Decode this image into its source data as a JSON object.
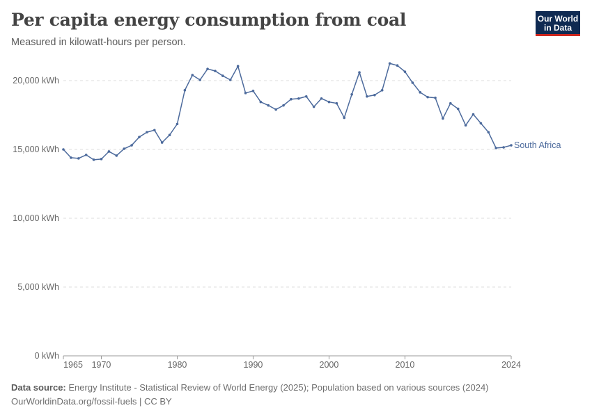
{
  "header": {
    "title": "Per capita energy consumption from coal",
    "subtitle": "Measured in kilowatt-hours per person.",
    "logo_line1": "Our World",
    "logo_line2": "in Data"
  },
  "footer": {
    "source_label": "Data source:",
    "source_text": "Energy Institute - Statistical Review of World Energy (2025); Population based on various sources (2024)",
    "link_text": "OurWorldinData.org/fossil-fuels | CC BY"
  },
  "colors": {
    "series": "#4c6a9c",
    "grid": "#dddddd",
    "axis": "#666666"
  },
  "chart_data": {
    "type": "line",
    "title": "Per capita energy consumption from coal",
    "subtitle": "Measured in kilowatt-hours per person.",
    "xlim": [
      1965,
      2024
    ],
    "ylim": [
      0,
      20000
    ],
    "x_ticks": [
      1965,
      1970,
      1980,
      1990,
      2000,
      2010,
      2024
    ],
    "y_ticks": [
      0,
      5000,
      10000,
      15000,
      20000
    ],
    "y_tick_labels": [
      "0 kWh",
      "5,000 kWh",
      "10,000 kWh",
      "15,000 kWh",
      "20,000 kWh"
    ],
    "grid": "horizontal dashed",
    "legend": "label at line end",
    "series": [
      {
        "name": "South Africa",
        "x": [
          1965,
          1966,
          1967,
          1968,
          1969,
          1970,
          1971,
          1972,
          1973,
          1974,
          1975,
          1976,
          1977,
          1978,
          1979,
          1980,
          1981,
          1982,
          1983,
          1984,
          1985,
          1986,
          1987,
          1988,
          1989,
          1990,
          1991,
          1992,
          1993,
          1994,
          1995,
          1996,
          1997,
          1998,
          1999,
          2000,
          2001,
          2002,
          2003,
          2004,
          2005,
          2006,
          2007,
          2008,
          2009,
          2010,
          2011,
          2012,
          2013,
          2014,
          2015,
          2016,
          2017,
          2018,
          2019,
          2020,
          2021,
          2022,
          2023,
          2024
        ],
        "values": [
          15000,
          14400,
          14350,
          14600,
          14250,
          14300,
          14850,
          14550,
          15050,
          15300,
          15900,
          16250,
          16400,
          15500,
          16050,
          16850,
          19300,
          20400,
          20050,
          20850,
          20700,
          20350,
          20050,
          21050,
          19100,
          19250,
          18450,
          18200,
          17900,
          18200,
          18650,
          18700,
          18850,
          18100,
          18700,
          18450,
          18350,
          17300,
          19000,
          20600,
          18850,
          18950,
          19300,
          21250,
          21100,
          20650,
          19850,
          19150,
          18800,
          18750,
          17250,
          18350,
          17950,
          16750,
          17550,
          16900,
          16250,
          15100,
          15150,
          15300
        ]
      }
    ]
  }
}
